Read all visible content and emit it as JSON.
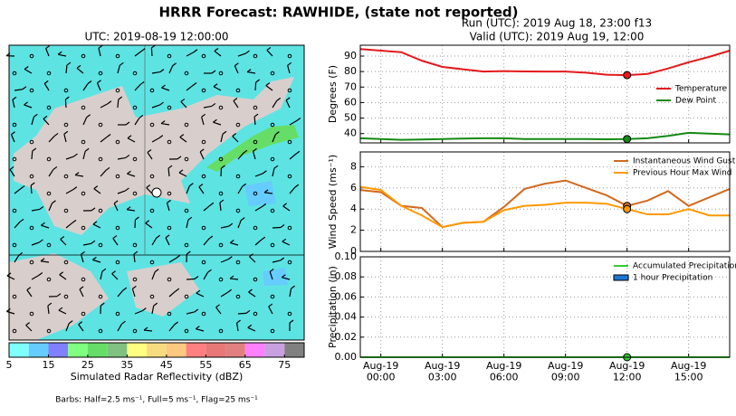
{
  "title": "HRRR Forecast: RAWHIDE, (state not reported)",
  "chart_data": [
    {
      "type": "map",
      "title": "UTC: 2019-08-19 12:00:00",
      "colorbar": {
        "bins": [
          5,
          10,
          15,
          20,
          25,
          30,
          35,
          40,
          45,
          50,
          55,
          60,
          65,
          70,
          75,
          80
        ],
        "colors": [
          "#80ffff",
          "#66ccff",
          "#8080ff",
          "#80ff80",
          "#66dd66",
          "#80c080",
          "#ffff80",
          "#f5dc80",
          "#ffc880",
          "#ff8080",
          "#e87878",
          "#e08080",
          "#ff80ff",
          "#c8a0e0",
          "#808080"
        ],
        "ticks": [
          5,
          15,
          25,
          35,
          45,
          55,
          65,
          75
        ],
        "label": "Simulated Radar Reflectivity (dBZ)"
      },
      "note": "Barbs: Half=2.5 ms⁻¹, Full=5 ms⁻¹, Flag=25 ms⁻¹"
    },
    {
      "type": "multi_panel",
      "title": "Run (UTC): 2019 Aug 18, 23:00 f13",
      "subtitle": "Valid (UTC): 2019 Aug 19, 12:00",
      "x": [
        -1,
        0,
        1,
        2,
        3,
        4,
        5,
        6,
        7,
        8,
        9,
        10,
        11,
        12,
        13,
        14,
        15,
        16,
        17
      ],
      "xlim": [
        -1,
        17
      ],
      "xticks": [
        {
          "value": 0,
          "label": "Aug-19\n00:00"
        },
        {
          "value": 3,
          "label": "Aug-19\n03:00"
        },
        {
          "value": 6,
          "label": "Aug-19\n06:00"
        },
        {
          "value": 9,
          "label": "Aug-19\n09:00"
        },
        {
          "value": 12,
          "label": "Aug-19\n12:00"
        },
        {
          "value": 15,
          "label": "Aug-19\n15:00"
        }
      ],
      "highlight_x": 12,
      "grid": true,
      "panels": [
        {
          "ylabel": "Degrees (F)",
          "ylim": [
            34,
            97
          ],
          "yticks": [
            40,
            50,
            60,
            70,
            80,
            90
          ],
          "legend": "right",
          "series": [
            {
              "name": "Temperature",
              "type": "line",
              "color": "#e31a1c",
              "values": [
                94.5,
                93.5,
                92.5,
                87,
                83,
                81.5,
                80,
                80.3,
                80.1,
                80,
                80,
                79.3,
                78,
                77.7,
                78.5,
                82,
                86,
                89.5,
                93.5
              ]
            },
            {
              "name": "Dew Point",
              "type": "line",
              "color": "#138a13",
              "values": [
                37,
                36.5,
                36,
                36.2,
                36.5,
                36.8,
                37,
                37,
                36.5,
                36.5,
                36.5,
                36.5,
                36.3,
                36.5,
                37,
                38.5,
                40.5,
                40,
                39.5
              ]
            }
          ]
        },
        {
          "ylabel": "Wind Speed (ms⁻¹)",
          "ylim": [
            0,
            9.4
          ],
          "yticks": [
            0,
            2,
            4,
            6,
            8
          ],
          "legend": "upper right",
          "series": [
            {
              "name": "Instantaneous Wind Gust",
              "type": "line",
              "color": "#d2691e",
              "values": [
                5.8,
                5.6,
                4.3,
                4.1,
                2.3,
                2.7,
                2.8,
                4.2,
                5.9,
                6.4,
                6.7,
                6,
                5.3,
                4.3,
                4.8,
                5.7,
                4.3,
                5.1,
                5.9
              ]
            },
            {
              "name": "Previous Hour Max Wind",
              "type": "line",
              "color": "#ff9900",
              "values": [
                6.1,
                5.8,
                4.3,
                3.4,
                2.3,
                2.7,
                2.8,
                3.9,
                4.3,
                4.4,
                4.6,
                4.6,
                4.5,
                4,
                3.5,
                3.5,
                4,
                3.4,
                3.4
              ]
            }
          ]
        },
        {
          "ylabel": "Precipitation (in)",
          "ylim": [
            0,
            0.1
          ],
          "yticks": [
            {
              "value": 0,
              "label": "0.00"
            },
            {
              "value": 0.02,
              "label": "0.02"
            },
            {
              "value": 0.04,
              "label": "0.04"
            },
            {
              "value": 0.06,
              "label": "0.06"
            },
            {
              "value": 0.08,
              "label": "0.08"
            },
            {
              "value": 0.1,
              "label": "0.10"
            }
          ],
          "legend": "upper right",
          "series": [
            {
              "name": "Accumulated Precipitation",
              "type": "line",
              "color": "#33cc33",
              "values": [
                0,
                0,
                0,
                0,
                0,
                0,
                0,
                0,
                0,
                0,
                0,
                0,
                0,
                0,
                0,
                0,
                0,
                0,
                0
              ]
            },
            {
              "name": "1 hour Precipitation",
              "type": "bar",
              "color": "#1f77d4",
              "values": [
                0,
                0,
                0,
                0,
                0,
                0,
                0,
                0,
                0,
                0,
                0,
                0,
                0,
                0,
                0,
                0,
                0,
                0,
                0
              ]
            }
          ]
        }
      ]
    }
  ]
}
